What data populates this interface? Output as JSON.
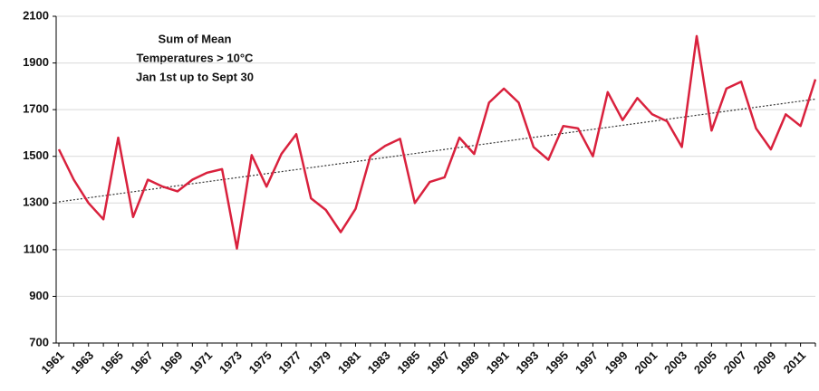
{
  "chart_data": {
    "type": "line",
    "title": [
      "Sum  of  Mean",
      "Temperatures  > 10°C",
      "Jan 1st up to Sept 30"
    ],
    "categories": [
      "1961",
      null,
      "1963",
      null,
      "1965",
      null,
      "1967",
      null,
      "1969",
      null,
      "1971",
      null,
      "1973",
      null,
      "1975",
      null,
      "1977",
      null,
      "1979",
      null,
      "1981",
      null,
      "1983",
      null,
      "1985",
      null,
      "1987",
      null,
      "1989",
      null,
      "1991",
      null,
      "1993",
      null,
      "1995",
      null,
      "1997",
      null,
      "1999",
      null,
      "2001",
      null,
      "2003",
      null,
      "2005",
      null,
      "2007",
      null,
      "2009",
      null,
      "2011",
      null
    ],
    "series": [
      {
        "color": "#d9213d",
        "values": [
          1530,
          1400,
          1300,
          1230,
          1580,
          1240,
          1400,
          1370,
          1350,
          1400,
          1430,
          1445,
          1105,
          1505,
          1370,
          1510,
          1595,
          1320,
          1270,
          1175,
          1275,
          1500,
          1545,
          1575,
          1300,
          1390,
          1410,
          1580,
          1510,
          1730,
          1790,
          1730,
          1540,
          1485,
          1630,
          1620,
          1500,
          1775,
          1655,
          1750,
          1680,
          1650,
          1540,
          2015,
          1610,
          1790,
          1820,
          1620,
          1530,
          1680,
          1630,
          1830
        ]
      }
    ],
    "trendline": {
      "start": 1305,
      "end": 1745,
      "color": "#333333"
    },
    "ylim": [
      700,
      2100
    ],
    "yticks": [
      700,
      900,
      1100,
      1300,
      1500,
      1700,
      1900,
      2100
    ],
    "grid": true
  }
}
